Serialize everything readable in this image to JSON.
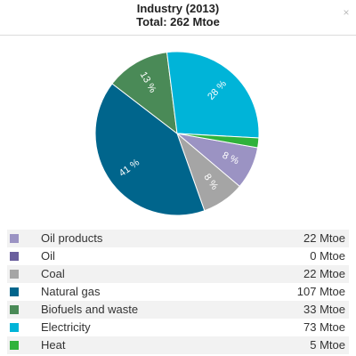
{
  "header": {
    "title": "Industry (2013)",
    "subtitle": "Total: 262 Mtoe",
    "close_label": "×"
  },
  "chart_data": {
    "type": "pie",
    "title": "Industry (2013)",
    "subtitle": "Total: 262 Mtoe",
    "unit": "Mtoe",
    "slices": [
      {
        "name": "Oil products",
        "value": 22,
        "value_label": "22 Mtoe",
        "pct_label": "8 %",
        "color": "#9b93c3"
      },
      {
        "name": "Oil",
        "value": 0,
        "value_label": "0 Mtoe",
        "pct_label": "",
        "color": "#6a5f9e"
      },
      {
        "name": "Coal",
        "value": 22,
        "value_label": "22 Mtoe",
        "pct_label": "8 %",
        "color": "#a5a5a5"
      },
      {
        "name": "Natural gas",
        "value": 107,
        "value_label": "107 Mtoe",
        "pct_label": "41 %",
        "color": "#00658c"
      },
      {
        "name": "Biofuels and waste",
        "value": 33,
        "value_label": "33 Mtoe",
        "pct_label": "13 %",
        "color": "#4a8a57"
      },
      {
        "name": "Electricity",
        "value": 73,
        "value_label": "73 Mtoe",
        "pct_label": "28 %",
        "color": "#00b4d8"
      },
      {
        "name": "Heat",
        "value": 5,
        "value_label": "5 Mtoe",
        "pct_label": "",
        "color": "#2fb23b"
      }
    ],
    "legend_placement": "bottom"
  }
}
